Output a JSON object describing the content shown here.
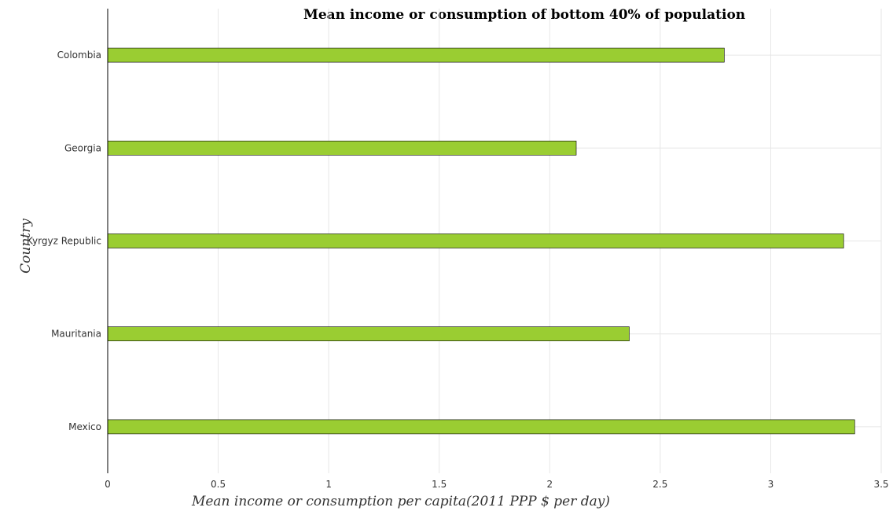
{
  "chart_data": {
    "type": "bar",
    "orientation": "horizontal",
    "title": "Mean income or consumption of bottom 40% of population",
    "xlabel": "Mean income or consumption per capita(2011 PPP $ per day)",
    "ylabel": "Country",
    "categories": [
      "Colombia",
      "Georgia",
      "Kyrgyz Republic",
      "Mauritania",
      "Mexico"
    ],
    "values": [
      2.79,
      2.12,
      3.33,
      2.36,
      3.38
    ],
    "xlim": [
      0,
      3.5
    ],
    "xticks": [
      0,
      0.5,
      1,
      1.5,
      2,
      2.5,
      3,
      3.5
    ],
    "xtick_labels": [
      "0",
      "0.5",
      "1",
      "1.5",
      "2",
      "2.5",
      "3",
      "3.5"
    ],
    "grid": true,
    "bar_color": "#9acd32"
  }
}
